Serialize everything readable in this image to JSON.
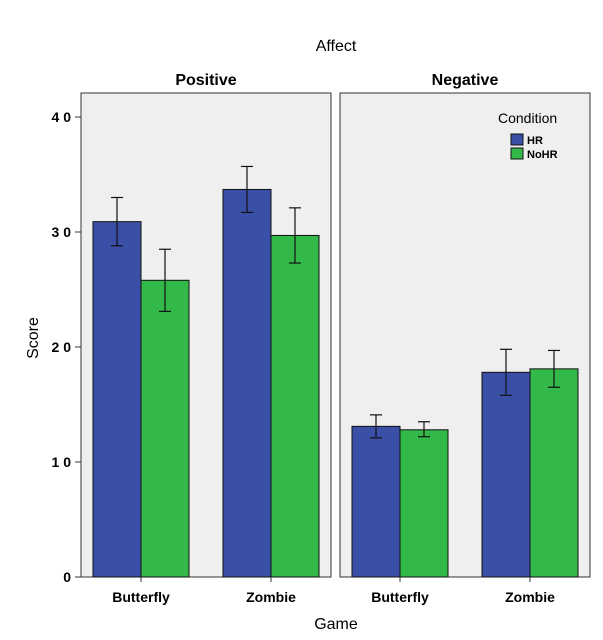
{
  "chart_data": {
    "type": "bar",
    "title": "Affect",
    "xlabel": "Game",
    "ylabel": "Score",
    "ylim": [
      0,
      40
    ],
    "yticks": [
      0,
      10,
      20,
      30,
      40
    ],
    "yticks_display": [
      "0",
      "1 0",
      "2 0",
      "3 0",
      "4 0"
    ],
    "grid": false,
    "legend": {
      "title": "Condition",
      "placement": "top-right",
      "items": [
        {
          "name": "HR",
          "color": "#3a4fa6"
        },
        {
          "name": "NoHR",
          "color": "#33b84a"
        }
      ]
    },
    "facets": [
      {
        "label": "Positive",
        "categories": [
          "Butterfly",
          "Zombie"
        ],
        "series": [
          {
            "name": "HR",
            "values": [
              30.9,
              33.7
            ],
            "error_low": [
              28.8,
              31.7
            ],
            "error_high": [
              33.0,
              35.7
            ]
          },
          {
            "name": "NoHR",
            "values": [
              25.8,
              29.7
            ],
            "error_low": [
              23.1,
              27.3
            ],
            "error_high": [
              28.5,
              32.1
            ]
          }
        ]
      },
      {
        "label": "Negative",
        "categories": [
          "Butterfly",
          "Zombie"
        ],
        "series": [
          {
            "name": "HR",
            "values": [
              13.1,
              17.8
            ],
            "error_low": [
              12.1,
              15.8
            ],
            "error_high": [
              14.1,
              19.8
            ]
          },
          {
            "name": "NoHR",
            "values": [
              12.8,
              18.1
            ],
            "error_low": [
              12.2,
              16.5
            ],
            "error_high": [
              13.5,
              19.7
            ]
          }
        ]
      }
    ]
  }
}
